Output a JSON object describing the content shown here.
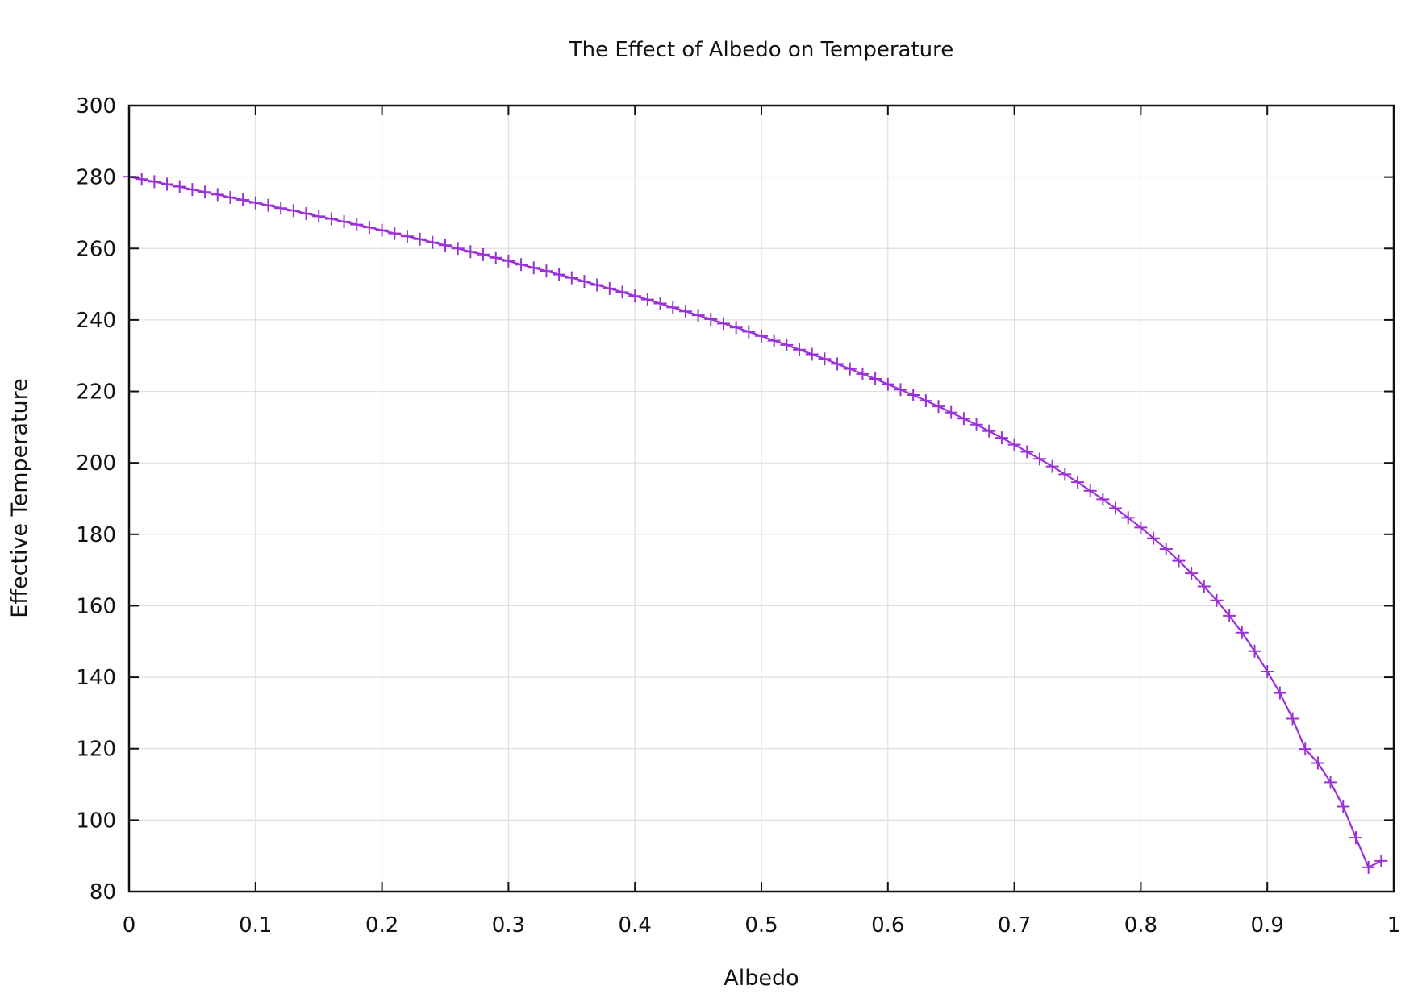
{
  "chart_data": {
    "type": "line",
    "title": "The Effect of Albedo on Temperature",
    "xlabel": "Albedo",
    "ylabel": "Effective Temperature",
    "xlim": [
      0,
      1
    ],
    "ylim": [
      80,
      300
    ],
    "x_ticks": [
      "0",
      "0.1",
      "0.2",
      "0.3",
      "0.4",
      "0.5",
      "0.6",
      "0.7",
      "0.8",
      "0.9",
      "1"
    ],
    "y_ticks": [
      "80",
      "100",
      "120",
      "140",
      "160",
      "180",
      "200",
      "220",
      "240",
      "260",
      "280",
      "300"
    ],
    "grid": true,
    "legend": "none",
    "marker": "plus",
    "color": "#9b30d9",
    "series": [
      {
        "x": [
          0,
          0.01,
          0.02,
          0.03,
          0.04,
          0.05,
          0.06,
          0.07,
          0.08,
          0.09,
          0.1,
          0.11,
          0.12,
          0.13,
          0.14,
          0.15,
          0.16,
          0.17,
          0.18,
          0.19,
          0.2,
          0.21,
          0.22,
          0.23,
          0.24,
          0.25,
          0.26,
          0.27,
          0.28,
          0.29,
          0.3,
          0.31,
          0.32,
          0.33,
          0.34,
          0.35,
          0.36,
          0.37,
          0.38,
          0.39,
          0.4,
          0.41,
          0.42,
          0.43,
          0.44,
          0.45,
          0.46,
          0.47,
          0.48,
          0.49,
          0.5,
          0.51,
          0.52,
          0.53,
          0.54,
          0.55,
          0.56,
          0.57,
          0.58,
          0.59,
          0.6,
          0.61,
          0.62,
          0.63,
          0.64,
          0.65,
          0.66,
          0.67,
          0.68,
          0.69,
          0.7,
          0.71,
          0.72,
          0.73,
          0.74,
          0.75,
          0.76,
          0.77,
          0.78,
          0.79,
          0.8,
          0.81,
          0.82,
          0.83,
          0.84,
          0.85,
          0.86,
          0.87,
          0.88,
          0.89,
          0.9,
          0.91,
          0.92,
          0.93,
          0.94,
          0.95,
          0.96,
          0.97,
          0.98,
          0.99
        ],
        "y": [
          280.1,
          279.4,
          278.7,
          278.0,
          277.3,
          276.5,
          275.8,
          275.1,
          274.3,
          273.6,
          272.8,
          272.1,
          271.3,
          270.6,
          269.8,
          269.0,
          268.3,
          267.5,
          266.7,
          265.9,
          265.1,
          264.2,
          263.4,
          262.6,
          261.7,
          260.9,
          260.0,
          259.1,
          258.3,
          257.4,
          256.5,
          255.5,
          254.6,
          253.7,
          252.7,
          251.8,
          250.8,
          249.8,
          248.8,
          247.8,
          246.7,
          245.7,
          244.6,
          243.5,
          242.4,
          241.3,
          240.2,
          239.0,
          237.9,
          236.7,
          235.5,
          234.2,
          233.0,
          231.7,
          230.4,
          229.1,
          227.7,
          226.3,
          224.9,
          223.5,
          222.0,
          220.5,
          219.0,
          217.4,
          215.8,
          214.1,
          212.4,
          210.7,
          208.9,
          207.0,
          205.1,
          203.1,
          201.1,
          199.0,
          196.8,
          194.6,
          192.2,
          189.8,
          187.3,
          184.6,
          181.9,
          178.9,
          175.9,
          172.6,
          169.1,
          165.4,
          161.5,
          157.2,
          152.5,
          147.3,
          141.6,
          135.6,
          128.4,
          119.9,
          116.0,
          110.6,
          103.8,
          95.1,
          86.8,
          88.6
        ]
      }
    ]
  }
}
